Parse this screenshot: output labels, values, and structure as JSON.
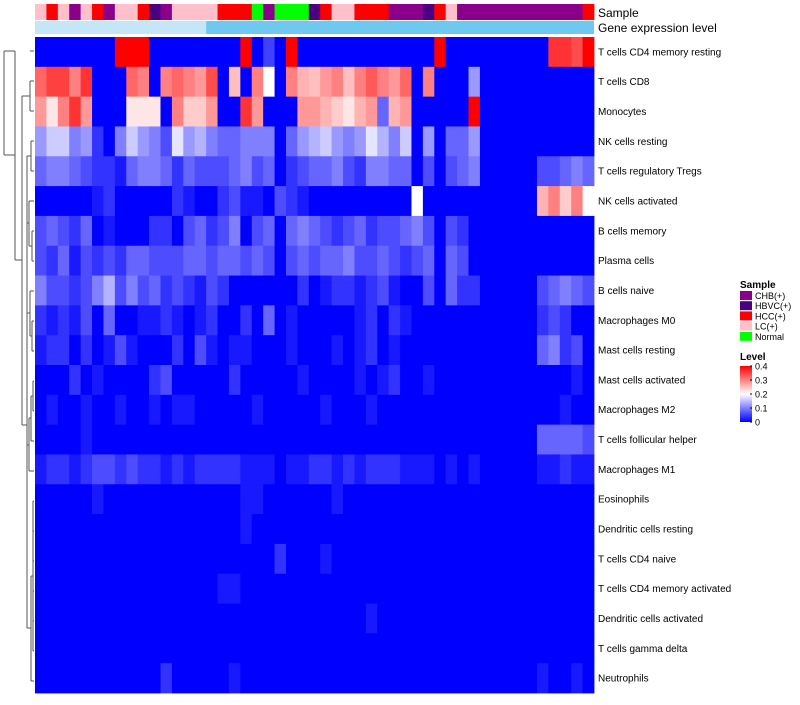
{
  "chart_data": {
    "type": "heatmap",
    "annotation_labels": [
      "Sample",
      "Gene expression level"
    ],
    "columns": 49,
    "rows": [
      "T cells CD4 memory resting",
      "T cells CD8",
      "Monocytes",
      "NK cells resting",
      "T cells regulatory  Tregs",
      "NK cells activated",
      "B cells memory",
      "Plasma cells",
      "B cells naive",
      "Macrophages M0",
      "Mast cells resting",
      "Mast cells activated",
      "Macrophages M2",
      "T cells follicular helper",
      "Macrophages M1",
      "Eosinophils",
      "Dendritic cells resting",
      "T cells CD4 naive",
      "T cells CD4 memory activated",
      "Dendritic cells activated",
      "T cells gamma delta",
      "Neutrophils"
    ],
    "sample_groups": [
      "LC",
      "HCC",
      "LC",
      "CHB",
      "LC",
      "HCC",
      "CHB",
      "LC",
      "LC",
      "HCC",
      "HBVC",
      "CHB",
      "LC",
      "LC",
      "LC",
      "LC",
      "HCC",
      "HCC",
      "HCC",
      "Normal",
      "CHB",
      "Normal",
      "Normal",
      "Normal",
      "HBVC",
      "HCC",
      "LC",
      "LC",
      "HCC",
      "HCC",
      "HCC",
      "CHB",
      "CHB",
      "CHB",
      "HBVC",
      "HCC",
      "LC",
      "CHB",
      "CHB",
      "CHB",
      "CHB",
      "CHB",
      "CHB",
      "CHB",
      "CHB",
      "CHB",
      "CHB",
      "CHB",
      "HCC"
    ],
    "expression_group_colors": [
      "#c5e6f7",
      "#6ec8f0"
    ],
    "expression_split_column": 15,
    "values": [
      [
        0.0,
        0.0,
        0.0,
        0.0,
        0.0,
        0.0,
        0.0,
        0.4,
        0.4,
        0.4,
        0.0,
        0.0,
        0.0,
        0.0,
        0.0,
        0.0,
        0.0,
        0.0,
        0.4,
        0.0,
        0.05,
        0.0,
        0.4,
        0.0,
        0.0,
        0.0,
        0.0,
        0.0,
        0.0,
        0.0,
        0.0,
        0.0,
        0.0,
        0.0,
        0.0,
        0.4,
        0.0,
        0.0,
        0.0,
        0.0,
        0.0,
        0.0,
        0.0,
        0.0,
        0.0,
        0.36,
        0.36,
        0.34,
        0.4
      ],
      [
        0.32,
        0.35,
        0.35,
        0.3,
        0.36,
        0.0,
        0.0,
        0.0,
        0.32,
        0.3,
        0.0,
        0.3,
        0.32,
        0.3,
        0.28,
        0.34,
        0.0,
        0.25,
        0.0,
        0.3,
        0.2,
        0.0,
        0.3,
        0.26,
        0.25,
        0.28,
        0.3,
        0.25,
        0.3,
        0.33,
        0.3,
        0.28,
        0.32,
        0.0,
        0.3,
        0.0,
        0.0,
        0.0,
        0.12,
        0.0,
        0.0,
        0.0,
        0.0,
        0.0,
        0.0,
        0.0,
        0.0,
        0.0,
        0.0
      ],
      [
        0.28,
        0.22,
        0.3,
        0.36,
        0.28,
        0.0,
        0.0,
        0.0,
        0.22,
        0.22,
        0.22,
        0.0,
        0.3,
        0.24,
        0.24,
        0.28,
        0.0,
        0.0,
        0.36,
        0.28,
        0.0,
        0.0,
        0.0,
        0.28,
        0.28,
        0.26,
        0.24,
        0.22,
        0.26,
        0.28,
        0.08,
        0.26,
        0.28,
        0.0,
        0.0,
        0.0,
        0.0,
        0.0,
        0.4,
        0.0,
        0.0,
        0.0,
        0.0,
        0.0,
        0.0,
        0.0,
        0.0,
        0.0,
        0.0
      ],
      [
        0.12,
        0.16,
        0.16,
        0.1,
        0.12,
        0.04,
        0.0,
        0.1,
        0.16,
        0.12,
        0.1,
        0.06,
        0.18,
        0.12,
        0.14,
        0.1,
        0.08,
        0.08,
        0.1,
        0.1,
        0.1,
        0.0,
        0.08,
        0.12,
        0.14,
        0.16,
        0.12,
        0.1,
        0.12,
        0.18,
        0.14,
        0.1,
        0.16,
        0.0,
        0.12,
        0.0,
        0.08,
        0.08,
        0.12,
        0.0,
        0.0,
        0.0,
        0.0,
        0.0,
        0.0,
        0.0,
        0.0,
        0.0,
        0.0
      ],
      [
        0.08,
        0.1,
        0.1,
        0.08,
        0.06,
        0.04,
        0.04,
        0.02,
        0.08,
        0.1,
        0.1,
        0.08,
        0.04,
        0.08,
        0.06,
        0.06,
        0.06,
        0.08,
        0.1,
        0.06,
        0.08,
        0.0,
        0.04,
        0.06,
        0.08,
        0.08,
        0.1,
        0.06,
        0.04,
        0.1,
        0.1,
        0.08,
        0.08,
        0.0,
        0.06,
        0.0,
        0.06,
        0.08,
        0.1,
        0.0,
        0.0,
        0.0,
        0.0,
        0.0,
        0.06,
        0.06,
        0.08,
        0.1,
        0.08
      ],
      [
        0.0,
        0.0,
        0.0,
        0.0,
        0.0,
        0.02,
        0.04,
        0.0,
        0.0,
        0.0,
        0.0,
        0.0,
        0.04,
        0.02,
        0.0,
        0.0,
        0.04,
        0.06,
        0.02,
        0.02,
        0.0,
        0.06,
        0.04,
        0.02,
        0.0,
        0.0,
        0.0,
        0.0,
        0.0,
        0.0,
        0.0,
        0.0,
        0.0,
        0.2,
        0.0,
        0.0,
        0.0,
        0.0,
        0.0,
        0.0,
        0.0,
        0.0,
        0.0,
        0.0,
        0.26,
        0.3,
        0.24,
        0.3,
        0.2
      ],
      [
        0.06,
        0.08,
        0.06,
        0.04,
        0.08,
        0.0,
        0.02,
        0.0,
        0.0,
        0.0,
        0.04,
        0.04,
        0.0,
        0.06,
        0.08,
        0.04,
        0.06,
        0.1,
        0.0,
        0.06,
        0.08,
        0.0,
        0.08,
        0.1,
        0.08,
        0.06,
        0.04,
        0.06,
        0.08,
        0.04,
        0.06,
        0.06,
        0.08,
        0.1,
        0.06,
        0.0,
        0.06,
        0.04,
        0.0,
        0.0,
        0.0,
        0.0,
        0.0,
        0.0,
        0.0,
        0.0,
        0.0,
        0.0,
        0.0
      ],
      [
        0.06,
        0.04,
        0.08,
        0.02,
        0.06,
        0.04,
        0.06,
        0.04,
        0.08,
        0.08,
        0.06,
        0.06,
        0.06,
        0.08,
        0.08,
        0.06,
        0.08,
        0.08,
        0.06,
        0.08,
        0.06,
        0.0,
        0.06,
        0.08,
        0.06,
        0.08,
        0.08,
        0.1,
        0.06,
        0.06,
        0.08,
        0.06,
        0.04,
        0.06,
        0.08,
        0.0,
        0.08,
        0.06,
        0.0,
        0.0,
        0.0,
        0.0,
        0.0,
        0.0,
        0.0,
        0.0,
        0.0,
        0.0,
        0.0
      ],
      [
        0.1,
        0.06,
        0.06,
        0.04,
        0.06,
        0.1,
        0.14,
        0.06,
        0.1,
        0.06,
        0.08,
        0.04,
        0.06,
        0.04,
        0.02,
        0.06,
        0.04,
        0.0,
        0.0,
        0.0,
        0.0,
        0.0,
        0.0,
        0.04,
        0.0,
        0.02,
        0.04,
        0.04,
        0.02,
        0.04,
        0.06,
        0.02,
        0.0,
        0.0,
        0.06,
        0.0,
        0.08,
        0.04,
        0.04,
        0.0,
        0.0,
        0.0,
        0.0,
        0.0,
        0.06,
        0.08,
        0.1,
        0.08,
        0.06
      ],
      [
        0.04,
        0.02,
        0.04,
        0.02,
        0.06,
        0.0,
        0.08,
        0.0,
        0.0,
        0.02,
        0.02,
        0.04,
        0.02,
        0.0,
        0.02,
        0.04,
        0.0,
        0.0,
        0.04,
        0.0,
        0.08,
        0.0,
        0.02,
        0.0,
        0.0,
        0.0,
        0.0,
        0.0,
        0.02,
        0.04,
        0.0,
        0.04,
        0.02,
        0.0,
        0.0,
        0.0,
        0.0,
        0.0,
        0.0,
        0.0,
        0.0,
        0.0,
        0.0,
        0.0,
        0.04,
        0.06,
        0.04,
        0.0,
        0.0
      ],
      [
        0.02,
        0.04,
        0.04,
        0.0,
        0.04,
        0.0,
        0.02,
        0.06,
        0.02,
        0.0,
        0.0,
        0.0,
        0.04,
        0.0,
        0.06,
        0.02,
        0.0,
        0.02,
        0.02,
        0.0,
        0.0,
        0.0,
        0.02,
        0.0,
        0.0,
        0.0,
        0.02,
        0.0,
        0.02,
        0.04,
        0.0,
        0.02,
        0.0,
        0.0,
        0.0,
        0.0,
        0.0,
        0.0,
        0.0,
        0.0,
        0.0,
        0.0,
        0.0,
        0.0,
        0.08,
        0.1,
        0.04,
        0.06,
        0.0
      ],
      [
        0.0,
        0.0,
        0.0,
        0.04,
        0.0,
        0.02,
        0.0,
        0.0,
        0.0,
        0.0,
        0.04,
        0.06,
        0.0,
        0.0,
        0.0,
        0.0,
        0.0,
        0.04,
        0.0,
        0.0,
        0.0,
        0.0,
        0.0,
        0.02,
        0.0,
        0.0,
        0.0,
        0.0,
        0.02,
        0.0,
        0.02,
        0.04,
        0.0,
        0.0,
        0.02,
        0.0,
        0.0,
        0.0,
        0.0,
        0.0,
        0.0,
        0.0,
        0.0,
        0.0,
        0.0,
        0.0,
        0.0,
        0.02,
        0.0
      ],
      [
        0.0,
        0.02,
        0.0,
        0.0,
        0.02,
        0.0,
        0.0,
        0.02,
        0.0,
        0.0,
        0.02,
        0.0,
        0.02,
        0.02,
        0.0,
        0.0,
        0.0,
        0.0,
        0.0,
        0.02,
        0.0,
        0.0,
        0.0,
        0.0,
        0.0,
        0.02,
        0.0,
        0.0,
        0.0,
        0.02,
        0.0,
        0.0,
        0.0,
        0.0,
        0.0,
        0.0,
        0.0,
        0.0,
        0.0,
        0.0,
        0.0,
        0.0,
        0.0,
        0.0,
        0.0,
        0.0,
        0.02,
        0.0,
        0.0
      ],
      [
        0.0,
        0.0,
        0.0,
        0.0,
        0.02,
        0.0,
        0.0,
        0.0,
        0.0,
        0.0,
        0.0,
        0.0,
        0.0,
        0.0,
        0.0,
        0.0,
        0.0,
        0.0,
        0.0,
        0.0,
        0.0,
        0.0,
        0.0,
        0.0,
        0.0,
        0.0,
        0.0,
        0.0,
        0.0,
        0.0,
        0.0,
        0.0,
        0.0,
        0.0,
        0.0,
        0.0,
        0.0,
        0.0,
        0.0,
        0.0,
        0.0,
        0.0,
        0.0,
        0.0,
        0.08,
        0.08,
        0.08,
        0.08,
        0.06
      ],
      [
        0.02,
        0.04,
        0.04,
        0.02,
        0.04,
        0.06,
        0.06,
        0.04,
        0.06,
        0.04,
        0.04,
        0.02,
        0.04,
        0.02,
        0.04,
        0.04,
        0.04,
        0.04,
        0.02,
        0.02,
        0.02,
        0.0,
        0.02,
        0.02,
        0.04,
        0.04,
        0.02,
        0.04,
        0.02,
        0.04,
        0.04,
        0.04,
        0.02,
        0.02,
        0.02,
        0.0,
        0.02,
        0.0,
        0.02,
        0.0,
        0.0,
        0.0,
        0.0,
        0.0,
        0.02,
        0.02,
        0.04,
        0.02,
        0.02
      ],
      [
        0.0,
        0.0,
        0.0,
        0.0,
        0.0,
        0.02,
        0.0,
        0.0,
        0.0,
        0.0,
        0.0,
        0.0,
        0.0,
        0.0,
        0.0,
        0.0,
        0.0,
        0.0,
        0.02,
        0.02,
        0.0,
        0.0,
        0.0,
        0.0,
        0.0,
        0.0,
        0.02,
        0.0,
        0.0,
        0.0,
        0.0,
        0.0,
        0.0,
        0.0,
        0.0,
        0.0,
        0.0,
        0.0,
        0.0,
        0.0,
        0.0,
        0.0,
        0.0,
        0.0,
        0.0,
        0.0,
        0.0,
        0.0,
        0.0
      ],
      [
        0.0,
        0.0,
        0.0,
        0.0,
        0.0,
        0.0,
        0.0,
        0.0,
        0.0,
        0.0,
        0.0,
        0.0,
        0.0,
        0.0,
        0.0,
        0.0,
        0.0,
        0.0,
        0.02,
        0.0,
        0.0,
        0.0,
        0.0,
        0.0,
        0.0,
        0.0,
        0.0,
        0.0,
        0.0,
        0.0,
        0.0,
        0.0,
        0.0,
        0.0,
        0.0,
        0.0,
        0.0,
        0.0,
        0.0,
        0.0,
        0.0,
        0.0,
        0.0,
        0.0,
        0.0,
        0.0,
        0.0,
        0.0,
        0.0
      ],
      [
        0.0,
        0.0,
        0.0,
        0.0,
        0.0,
        0.0,
        0.0,
        0.0,
        0.0,
        0.0,
        0.0,
        0.0,
        0.0,
        0.0,
        0.0,
        0.0,
        0.0,
        0.0,
        0.0,
        0.0,
        0.0,
        0.04,
        0.0,
        0.0,
        0.0,
        0.02,
        0.0,
        0.0,
        0.0,
        0.0,
        0.0,
        0.0,
        0.0,
        0.0,
        0.0,
        0.0,
        0.0,
        0.0,
        0.0,
        0.0,
        0.0,
        0.0,
        0.0,
        0.0,
        0.0,
        0.0,
        0.0,
        0.0,
        0.0
      ],
      [
        0.0,
        0.0,
        0.0,
        0.0,
        0.0,
        0.0,
        0.0,
        0.0,
        0.0,
        0.0,
        0.0,
        0.0,
        0.0,
        0.0,
        0.0,
        0.0,
        0.02,
        0.02,
        0.0,
        0.0,
        0.0,
        0.0,
        0.0,
        0.0,
        0.0,
        0.0,
        0.0,
        0.0,
        0.0,
        0.0,
        0.0,
        0.0,
        0.0,
        0.0,
        0.0,
        0.0,
        0.0,
        0.0,
        0.0,
        0.0,
        0.0,
        0.0,
        0.0,
        0.0,
        0.0,
        0.0,
        0.0,
        0.0,
        0.0
      ],
      [
        0.0,
        0.0,
        0.0,
        0.0,
        0.0,
        0.0,
        0.0,
        0.0,
        0.0,
        0.0,
        0.0,
        0.0,
        0.0,
        0.0,
        0.0,
        0.0,
        0.0,
        0.0,
        0.0,
        0.0,
        0.0,
        0.0,
        0.0,
        0.0,
        0.0,
        0.0,
        0.0,
        0.0,
        0.0,
        0.02,
        0.0,
        0.0,
        0.0,
        0.0,
        0.0,
        0.0,
        0.0,
        0.0,
        0.0,
        0.0,
        0.0,
        0.0,
        0.0,
        0.0,
        0.0,
        0.0,
        0.0,
        0.0,
        0.0
      ],
      [
        0.0,
        0.0,
        0.0,
        0.0,
        0.0,
        0.0,
        0.0,
        0.0,
        0.0,
        0.0,
        0.0,
        0.0,
        0.0,
        0.0,
        0.0,
        0.0,
        0.0,
        0.0,
        0.0,
        0.0,
        0.0,
        0.0,
        0.0,
        0.0,
        0.0,
        0.0,
        0.0,
        0.0,
        0.0,
        0.0,
        0.0,
        0.0,
        0.0,
        0.0,
        0.0,
        0.0,
        0.0,
        0.0,
        0.0,
        0.0,
        0.0,
        0.0,
        0.0,
        0.0,
        0.0,
        0.0,
        0.0,
        0.0,
        0.0
      ],
      [
        0.0,
        0.0,
        0.0,
        0.0,
        0.0,
        0.0,
        0.0,
        0.0,
        0.0,
        0.0,
        0.0,
        0.04,
        0.0,
        0.0,
        0.0,
        0.0,
        0.0,
        0.02,
        0.0,
        0.0,
        0.0,
        0.0,
        0.0,
        0.0,
        0.0,
        0.0,
        0.0,
        0.0,
        0.0,
        0.0,
        0.0,
        0.0,
        0.0,
        0.0,
        0.0,
        0.0,
        0.0,
        0.0,
        0.0,
        0.0,
        0.0,
        0.0,
        0.0,
        0.0,
        0.02,
        0.0,
        0.0,
        0.02,
        0.0
      ]
    ],
    "color_scale": {
      "min": 0,
      "max": 0.4,
      "low": "#0000ff",
      "mid": "#ffffff",
      "high": "#ff0000"
    },
    "legend": {
      "sample_title": "Sample",
      "sample_entries": [
        {
          "key": "CHB",
          "label": "CHB(+)",
          "color": "#8b008b"
        },
        {
          "key": "HBVC",
          "label": "HBVC(+)",
          "color": "#4b0082"
        },
        {
          "key": "HCC",
          "label": "HCC(+)",
          "color": "#ff0000"
        },
        {
          "key": "LC",
          "label": "LC(+)",
          "color": "#ffc0cb"
        },
        {
          "key": "Normal",
          "label": "Normal",
          "color": "#00ff00"
        }
      ],
      "level_title": "Level",
      "level_ticks": [
        0.4,
        0.3,
        0.2,
        0.1,
        0
      ]
    }
  }
}
